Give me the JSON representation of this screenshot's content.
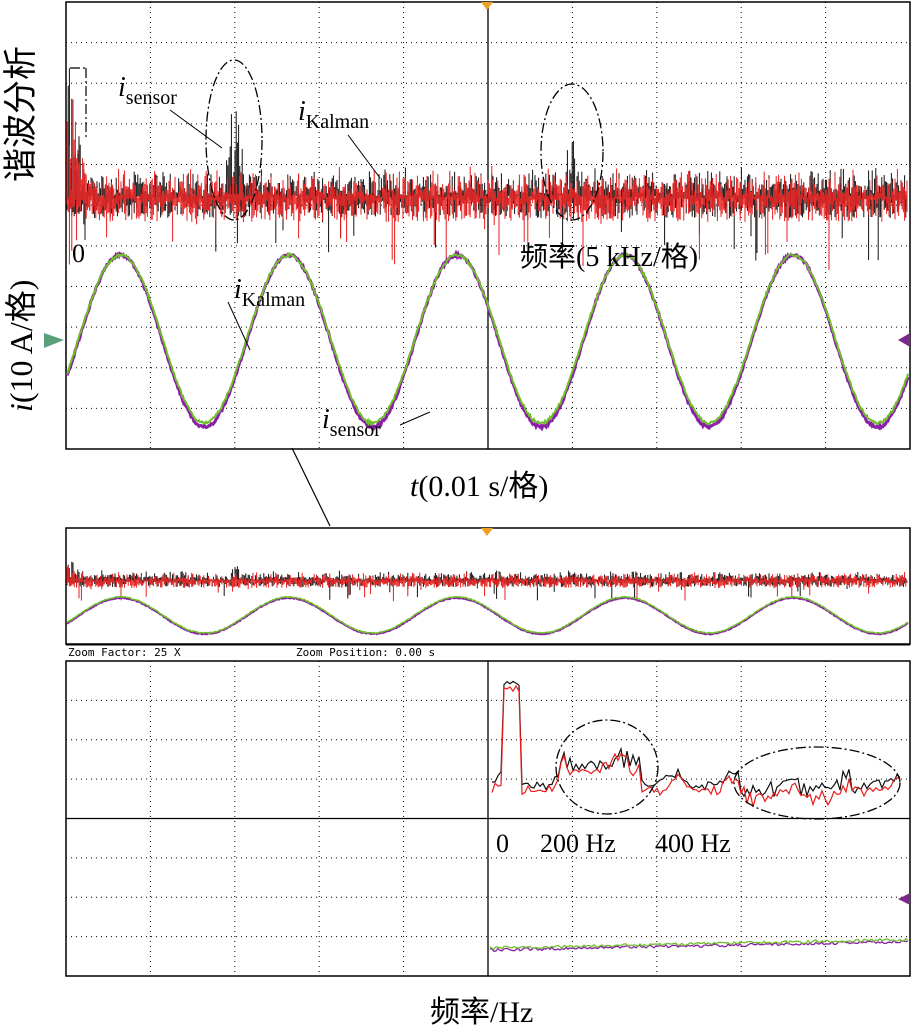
{
  "top_panel": {
    "harmonic_axis_label": "谐波分析",
    "current_axis_label_prefix": "i",
    "current_axis_label_rest": "(10 A/格)",
    "time_axis_label_prefix": "t",
    "time_axis_label_rest": "(0.01 s/格)",
    "freq_axis_label": "频率(5 kHz/格)",
    "freq_origin_label": "0",
    "annot_sensor_fft": {
      "main": "i",
      "sub": "sensor"
    },
    "annot_kalman_fft": {
      "main": "i",
      "sub": "Kalman"
    },
    "annot_kalman_wave": {
      "main": "i",
      "sub": "Kalman"
    },
    "annot_sensor_wave": {
      "main": "i",
      "sub": "sensor"
    }
  },
  "zoom_panel": {
    "zoom_factor_text": "Zoom Factor: 25 X",
    "zoom_position_text": "Zoom Position: 0.00 s",
    "freq_origin_label": "0",
    "tick_200_label": "200 Hz",
    "tick_400_label": "400 Hz",
    "freq_axis_label": "频率/Hz"
  },
  "colors": {
    "sensor": "#111111",
    "kalman": "#e81c1c",
    "wave_sensor": "#8b1fa8",
    "wave_kalman": "#6fbf2a",
    "grid": "#000000",
    "marker_orange": "#f0a020",
    "marker_green": "#5aa07a",
    "marker_purple": "#7a2a8a"
  },
  "chart_data": [
    {
      "type": "line",
      "title": "",
      "description_units": "harmonic spectrum, 5 kHz/div",
      "xlabel": "频率(5 kHz/格)",
      "ylabel": "谐波分析",
      "series": [
        {
          "name": "isensor",
          "peaks_at_div": [
            2,
            6
          ]
        },
        {
          "name": "iKalman"
        }
      ]
    },
    {
      "type": "line",
      "xlabel": "t(0.01 s/格)",
      "ylabel": "i(10 A/格)",
      "series": [
        {
          "name": "isensor",
          "cycles_per_screen": 5,
          "amplitude_div": 2.2
        },
        {
          "name": "iKalman",
          "cycles_per_screen": 5,
          "amplitude_div": 2.2
        }
      ]
    },
    {
      "type": "line",
      "xlabel": "频率/Hz",
      "x_ticks": [
        "0",
        "200 Hz",
        "400 Hz"
      ],
      "series": [
        {
          "name": "isensor"
        },
        {
          "name": "iKalman"
        }
      ]
    }
  ]
}
